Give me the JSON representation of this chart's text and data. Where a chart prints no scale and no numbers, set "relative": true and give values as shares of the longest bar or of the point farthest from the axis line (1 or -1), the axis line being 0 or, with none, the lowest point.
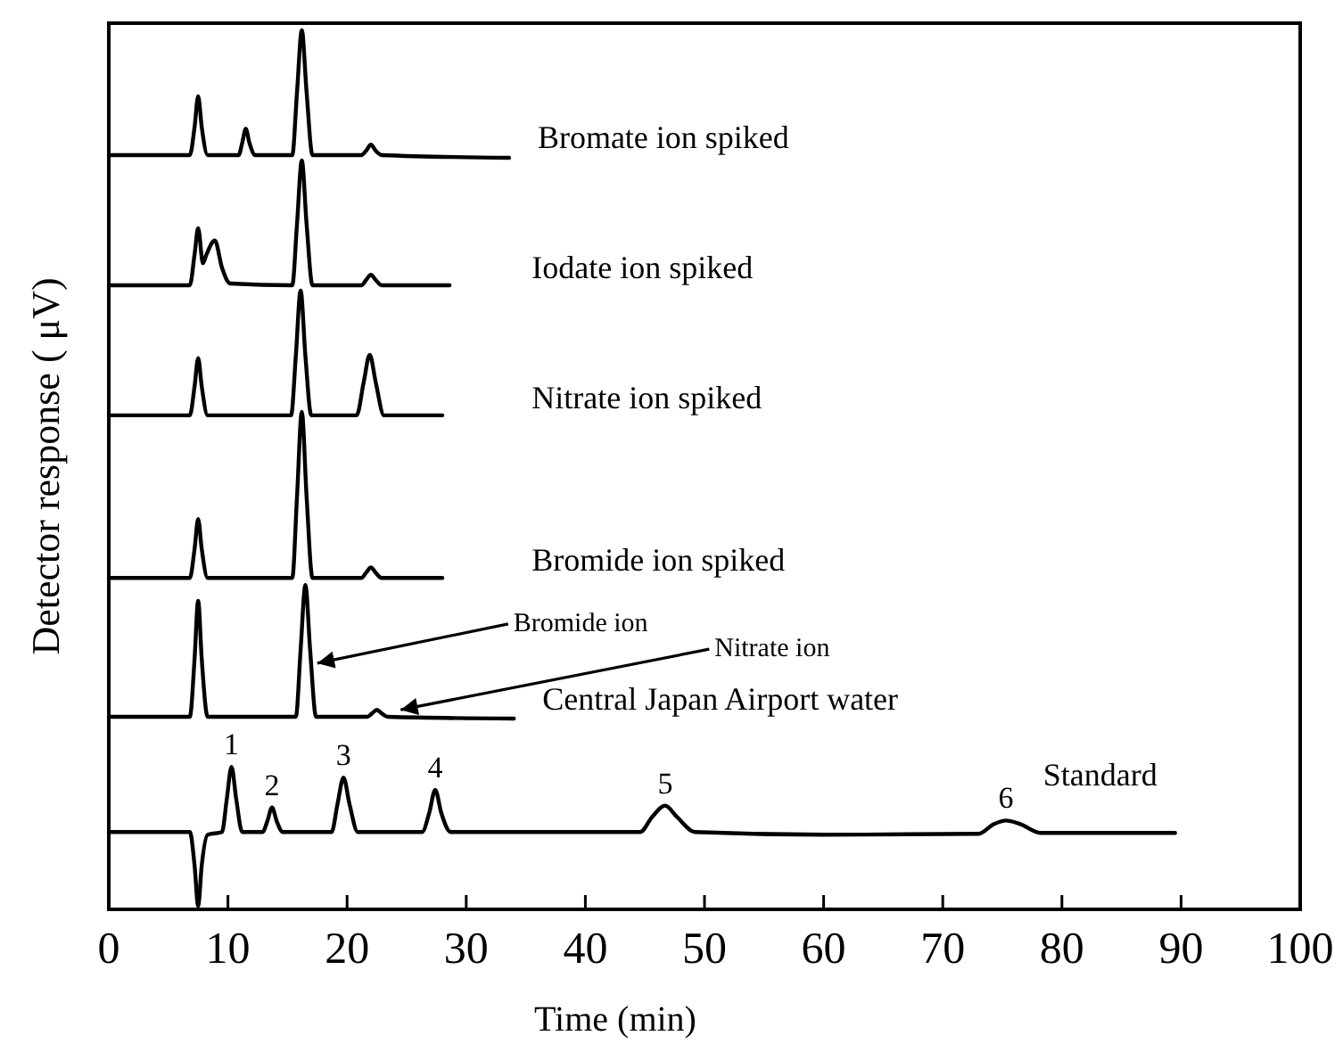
{
  "chart_data": {
    "type": "line",
    "relative": true,
    "xlabel": "Time (min)",
    "ylabel": "Detector response ( μV)",
    "xlim": [
      0,
      100
    ],
    "xticks": [
      0,
      10,
      20,
      30,
      40,
      50,
      60,
      70,
      80,
      90,
      100
    ],
    "series": [
      {
        "name": "Bromate ion spiked",
        "color": "#000000",
        "x": [
          0,
          6.8,
          7.2,
          7.5,
          7.8,
          8.3,
          10.9,
          11.2,
          11.5,
          11.8,
          12.3,
          15.4,
          15.8,
          16.2,
          16.6,
          17.1,
          21.2,
          21.6,
          22,
          22.4,
          22.9,
          33.6
        ],
        "values": [
          0.858,
          0.858,
          0.89,
          0.925,
          0.89,
          0.858,
          0.858,
          0.872,
          0.888,
          0.872,
          0.858,
          0.858,
          0.93,
          1.0,
          0.93,
          0.858,
          0.858,
          0.863,
          0.87,
          0.863,
          0.858,
          0.855
        ]
      },
      {
        "name": "Iodate ion spiked",
        "color": "#000000",
        "x": [
          0,
          6.8,
          7.2,
          7.5,
          7.9,
          8.2,
          8.9,
          9.5,
          10.2,
          15.4,
          15.8,
          16.2,
          16.6,
          17.1,
          21.2,
          21.6,
          22,
          22.4,
          22.9,
          28.6
        ],
        "values": [
          0.71,
          0.71,
          0.745,
          0.775,
          0.735,
          0.745,
          0.761,
          0.73,
          0.712,
          0.71,
          0.78,
          0.852,
          0.78,
          0.71,
          0.71,
          0.716,
          0.722,
          0.716,
          0.71,
          0.71
        ]
      },
      {
        "name": "Nitrate ion spiked",
        "color": "#000000",
        "x": [
          0,
          6.8,
          7.2,
          7.5,
          7.8,
          8.3,
          15.3,
          15.7,
          16.1,
          16.5,
          17,
          20.8,
          21.4,
          21.9,
          22.4,
          23.1,
          28
        ],
        "values": [
          0.562,
          0.562,
          0.595,
          0.627,
          0.595,
          0.562,
          0.562,
          0.63,
          0.704,
          0.63,
          0.562,
          0.562,
          0.6,
          0.631,
          0.6,
          0.562,
          0.562
        ]
      },
      {
        "name": "Bromide ion spiked",
        "color": "#000000",
        "x": [
          0,
          6.8,
          7.2,
          7.5,
          7.8,
          8.3,
          15.4,
          15.8,
          16.2,
          16.6,
          17.1,
          21.2,
          21.6,
          22,
          22.4,
          22.9,
          28
        ],
        "values": [
          0.377,
          0.377,
          0.41,
          0.444,
          0.41,
          0.377,
          0.377,
          0.47,
          0.566,
          0.47,
          0.377,
          0.377,
          0.383,
          0.389,
          0.383,
          0.377,
          0.377
        ]
      },
      {
        "name": "Central Japan Airport water",
        "color": "#000000",
        "x": [
          0,
          6.8,
          7.2,
          7.5,
          7.8,
          8.3,
          15.7,
          16.1,
          16.5,
          16.9,
          17.4,
          21.7,
          22.1,
          22.5,
          22.9,
          23.4,
          34
        ],
        "values": [
          0.219,
          0.219,
          0.285,
          0.351,
          0.285,
          0.219,
          0.219,
          0.295,
          0.369,
          0.295,
          0.219,
          0.219,
          0.223,
          0.227,
          0.223,
          0.219,
          0.217
        ]
      },
      {
        "name": "Standard",
        "color": "#000000",
        "x": [
          0,
          6.8,
          7.2,
          7.5,
          7.8,
          8.3,
          9.5,
          9.9,
          10.3,
          10.7,
          11.2,
          12.9,
          13.3,
          13.7,
          14.1,
          14.6,
          18.7,
          19.2,
          19.7,
          20.2,
          20.9,
          26.3,
          26.9,
          27.4,
          27.9,
          28.7,
          44.6,
          45.6,
          46.7,
          47.7,
          49.2,
          60,
          73,
          74.3,
          75.3,
          76.5,
          78.2,
          89.5
        ],
        "values": [
          0.088,
          0.088,
          0.05,
          0.004,
          0.05,
          0.085,
          0.088,
          0.125,
          0.162,
          0.125,
          0.088,
          0.088,
          0.1,
          0.116,
          0.1,
          0.088,
          0.088,
          0.12,
          0.15,
          0.12,
          0.088,
          0.088,
          0.11,
          0.136,
          0.11,
          0.088,
          0.088,
          0.105,
          0.118,
          0.105,
          0.088,
          0.085,
          0.086,
          0.097,
          0.101,
          0.097,
          0.087,
          0.087
        ]
      }
    ],
    "annotations": [
      {
        "text": "1",
        "x": 10.3,
        "y": 0.162
      },
      {
        "text": "2",
        "x": 13.7,
        "y": 0.116
      },
      {
        "text": "3",
        "x": 19.7,
        "y": 0.15
      },
      {
        "text": "4",
        "x": 27.4,
        "y": 0.136
      },
      {
        "text": "5",
        "x": 46.7,
        "y": 0.118
      },
      {
        "text": "6",
        "x": 75.3,
        "y": 0.101
      },
      {
        "text": "Bromide ion",
        "x": 17.2,
        "y": 0.28
      },
      {
        "text": "Nitrate ion",
        "x": 24.2,
        "y": 0.227
      }
    ]
  }
}
